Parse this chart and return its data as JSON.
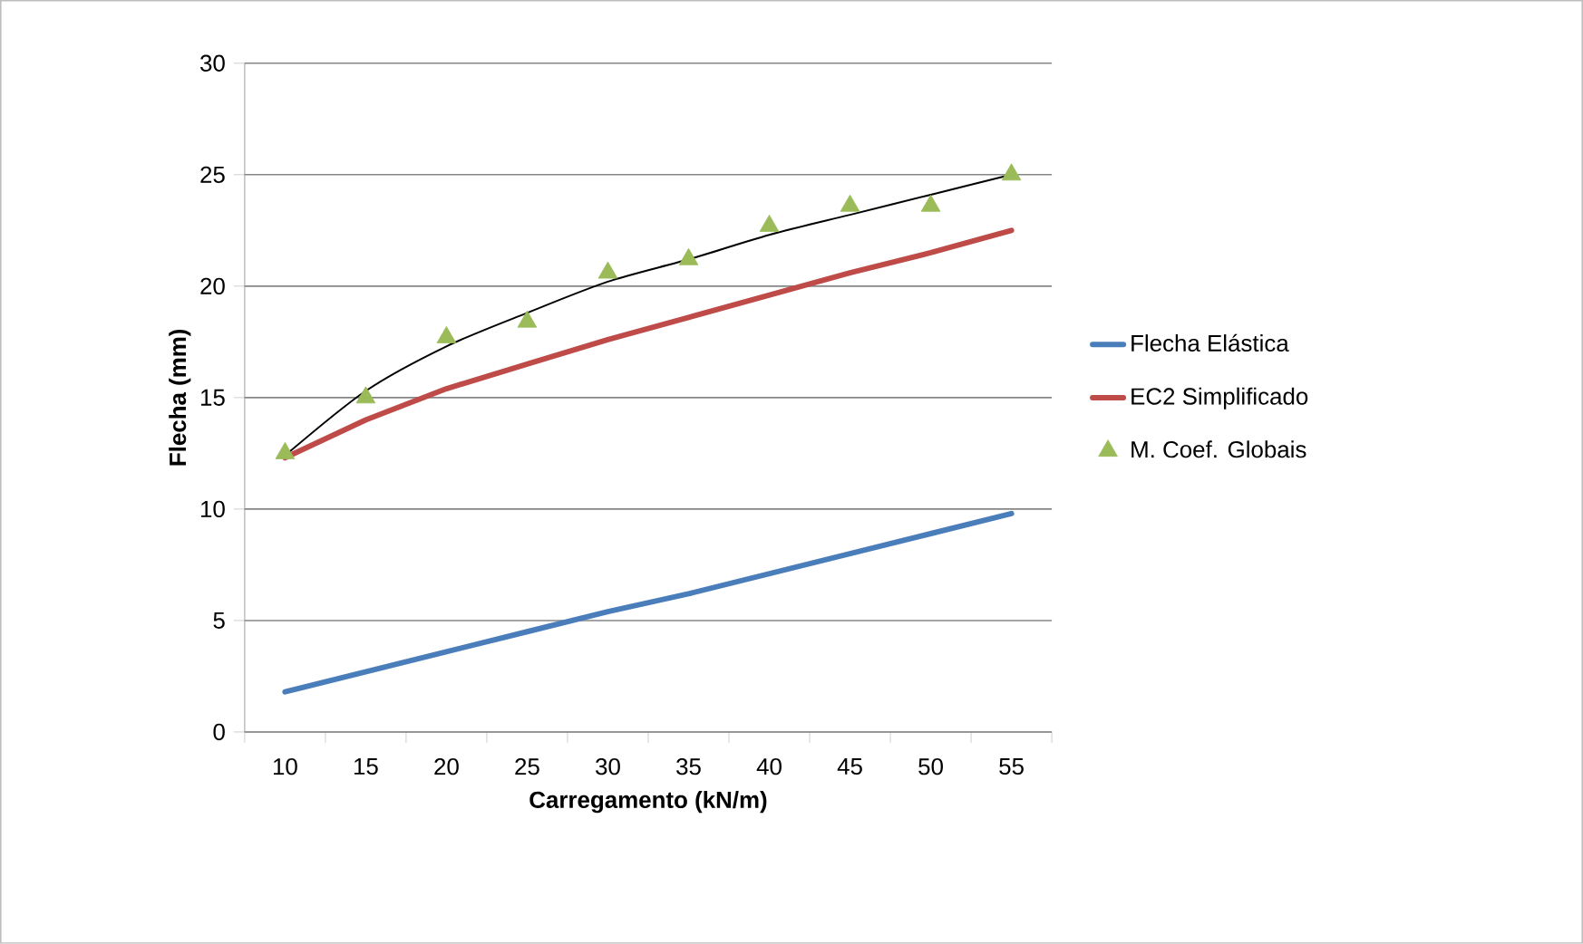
{
  "chart_data": {
    "type": "line",
    "xlabel": "Carregamento (kN/m)",
    "ylabel": "Flecha (mm)",
    "categories": [
      "10",
      "15",
      "20",
      "25",
      "30",
      "35",
      "40",
      "45",
      "50",
      "55"
    ],
    "ylim": [
      0,
      30
    ],
    "yticks": [
      0,
      5,
      10,
      15,
      20,
      25,
      30
    ],
    "grid": "y",
    "legend": "right",
    "series": [
      {
        "name": "Flecha Elástica",
        "color": "#4a7ebb",
        "values": [
          1.8,
          2.7,
          3.6,
          4.5,
          5.4,
          6.2,
          7.1,
          8.0,
          8.9,
          9.8
        ]
      },
      {
        "name": "EC2 Simplificado",
        "color": "#be4b48",
        "values": [
          12.3,
          14.0,
          15.4,
          16.5,
          17.6,
          18.6,
          19.6,
          20.6,
          21.5,
          22.5
        ]
      },
      {
        "name": "M. Coef. Globais",
        "type": "scatter",
        "marker": "triangle",
        "color": "#9bbb59",
        "values": [
          12.5,
          15.0,
          17.7,
          18.4,
          20.6,
          21.2,
          22.7,
          23.6,
          23.6,
          25.0
        ]
      },
      {
        "type": "line",
        "color": "#000000",
        "values": [
          12.4,
          15.3,
          17.3,
          18.8,
          20.2,
          21.2,
          22.3,
          23.2,
          24.1,
          25.0
        ]
      }
    ]
  }
}
